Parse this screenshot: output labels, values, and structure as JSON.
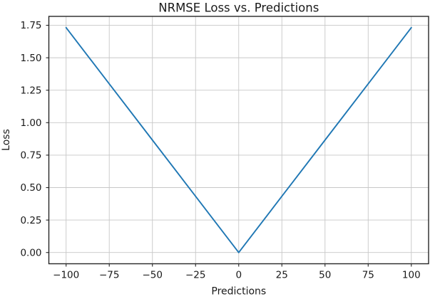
{
  "chart_data": {
    "type": "line",
    "title": "NRMSE Loss vs. Predictions",
    "xlabel": "Predictions",
    "ylabel": "Loss",
    "x": [
      -100,
      -75,
      -50,
      -25,
      0,
      25,
      50,
      75,
      100
    ],
    "y": [
      1.732,
      1.299,
      0.866,
      0.433,
      0.0,
      0.433,
      0.866,
      1.299,
      1.732
    ],
    "xticks": [
      -100,
      -75,
      -50,
      -25,
      0,
      25,
      50,
      75,
      100
    ],
    "yticks": [
      0.0,
      0.25,
      0.5,
      0.75,
      1.0,
      1.25,
      1.5,
      1.75
    ],
    "xlim": [
      -110,
      110
    ],
    "ylim": [
      -0.0866,
      1.8187
    ],
    "grid": true,
    "legend": "none",
    "line_color": "#1f77b4",
    "grid_color": "#c7c7c7",
    "spine_color": "#262626",
    "text_color": "#1a1a1a",
    "background_color": "#ffffff"
  }
}
